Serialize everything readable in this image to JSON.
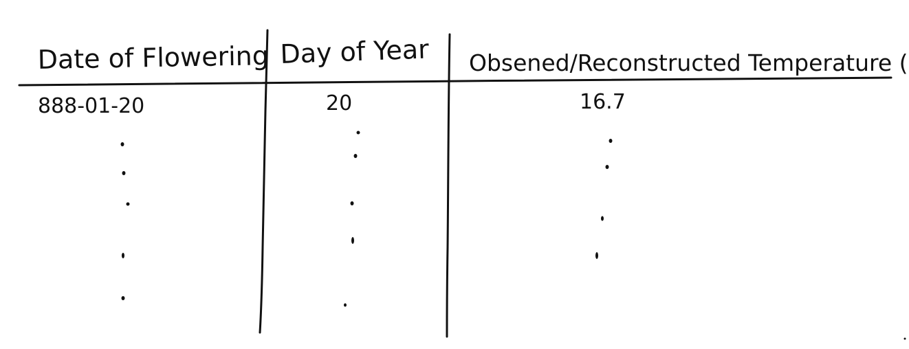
{
  "table": {
    "headers": [
      "Date of Flowering",
      "Day of Year",
      "Obsened/Reconstructed Temperature (°C)"
    ],
    "rows": [
      [
        "888-01-20",
        "20",
        "16.7"
      ]
    ]
  }
}
